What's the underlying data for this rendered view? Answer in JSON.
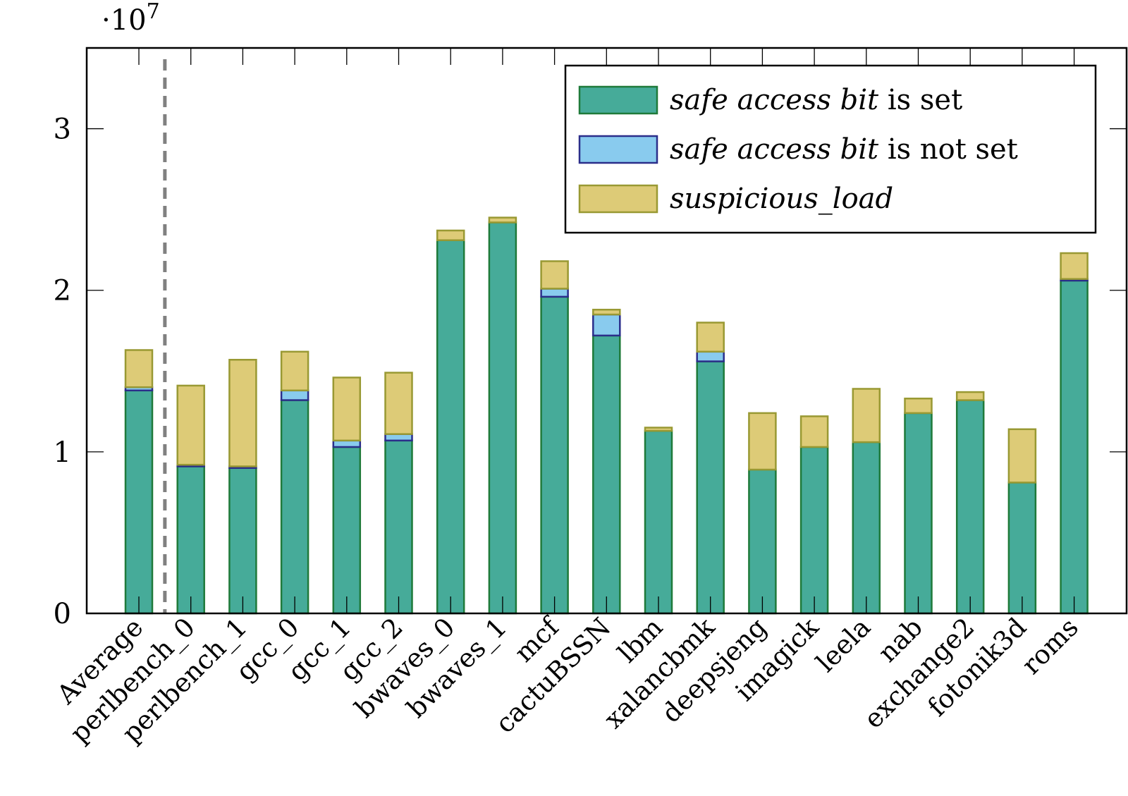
{
  "chart_data": {
    "type": "bar",
    "stacked": true,
    "axis_multiplier": "·10",
    "axis_multiplier_exponent": "7",
    "categories": [
      "Average",
      "perlbench_0",
      "perlbench_1",
      "gcc_0",
      "gcc_1",
      "gcc_2",
      "bwaves_0",
      "bwaves_1",
      "mcf",
      "cactuBSSN",
      "lbm",
      "xalancbmk",
      "deepsjeng",
      "imagick",
      "leela",
      "nab",
      "exchange2",
      "fotonik3d",
      "roms"
    ],
    "series": [
      {
        "name_italic": "safe access bit",
        "name_suffix": " is set",
        "color": "#46ab99",
        "stroke": "#1f7a3a",
        "values": [
          1.38,
          0.91,
          0.9,
          1.32,
          1.03,
          1.07,
          2.31,
          2.42,
          1.96,
          1.72,
          1.13,
          1.56,
          0.89,
          1.03,
          1.06,
          1.24,
          1.32,
          0.81,
          2.06
        ]
      },
      {
        "name_italic": "safe access bit",
        "name_suffix": " is not set",
        "color": "#89cbee",
        "stroke": "#2b2e8a",
        "values": [
          0.02,
          0.01,
          0.01,
          0.06,
          0.04,
          0.04,
          0.0,
          0.0,
          0.05,
          0.13,
          0.0,
          0.06,
          0.0,
          0.0,
          0.0,
          0.0,
          0.0,
          0.0,
          0.01
        ]
      },
      {
        "name_italic": "suspicious_load",
        "name_suffix": "",
        "color": "#ddcb77",
        "stroke": "#999933",
        "values": [
          0.23,
          0.49,
          0.66,
          0.24,
          0.39,
          0.38,
          0.06,
          0.03,
          0.17,
          0.03,
          0.02,
          0.18,
          0.35,
          0.19,
          0.33,
          0.09,
          0.05,
          0.33,
          0.16
        ]
      }
    ],
    "ylim": [
      0,
      3.5
    ],
    "yticks": [
      0,
      1,
      2,
      3
    ],
    "ytick_labels": [
      "0",
      "1",
      "2",
      "3"
    ],
    "separator_after_index": 0,
    "legend_position": "top-right",
    "grid": false
  }
}
